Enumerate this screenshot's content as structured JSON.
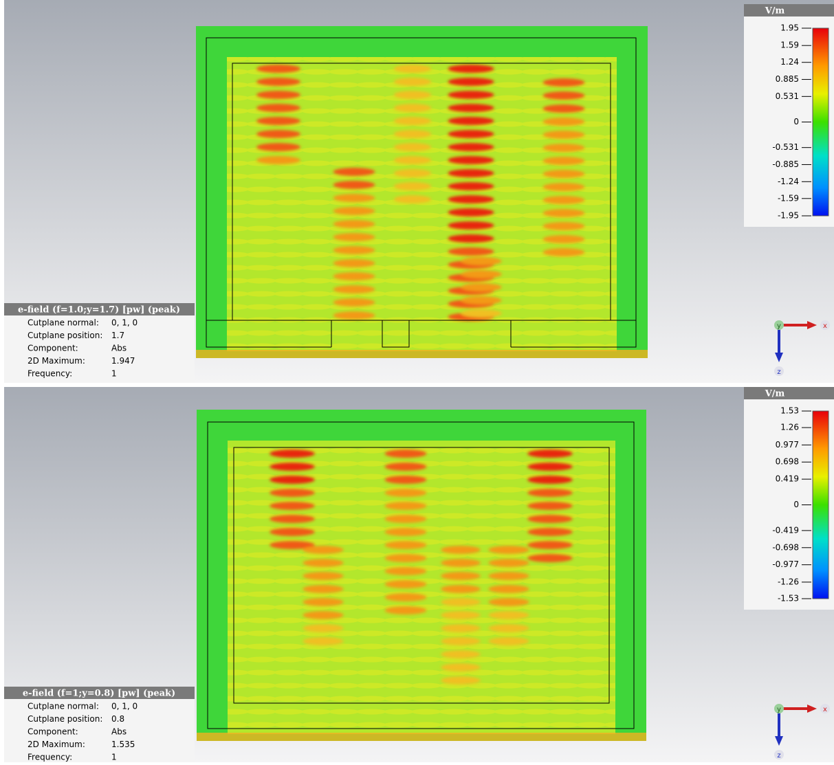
{
  "panels": [
    {
      "info": {
        "title": "e-field (f=1.0;y=1.7) [pw] (peak)",
        "rows": [
          {
            "label": "Cutplane normal:",
            "value": "0, 1, 0"
          },
          {
            "label": "Cutplane position:",
            "value": "1.7"
          },
          {
            "label": "Component:",
            "value": "Abs"
          },
          {
            "label": "2D Maximum:",
            "value": "1.947"
          },
          {
            "label": "Frequency:",
            "value": "1"
          }
        ]
      },
      "colorbar": {
        "unit": "V/m",
        "ticks": [
          1.95,
          1.59,
          1.24,
          0.885,
          0.531,
          0,
          -0.531,
          -0.885,
          -1.24,
          -1.59,
          -1.95
        ]
      },
      "axes": {
        "x": "x",
        "y": "y",
        "z": "z"
      }
    },
    {
      "info": {
        "title": "e-field (f=1;y=0.8) [pw] (peak)",
        "rows": [
          {
            "label": "Cutplane normal:",
            "value": "0, 1, 0"
          },
          {
            "label": "Cutplane position:",
            "value": "0.8"
          },
          {
            "label": "Component:",
            "value": "Abs"
          },
          {
            "label": "2D Maximum:",
            "value": "1.535"
          },
          {
            "label": "Frequency:",
            "value": "1"
          }
        ]
      },
      "colorbar": {
        "unit": "V/m",
        "ticks": [
          1.53,
          1.26,
          0.977,
          0.698,
          0.419,
          0,
          -0.419,
          -0.698,
          -0.977,
          -1.26,
          -1.53
        ]
      },
      "axes": {
        "x": "x",
        "y": "y",
        "z": "z"
      }
    }
  ]
}
